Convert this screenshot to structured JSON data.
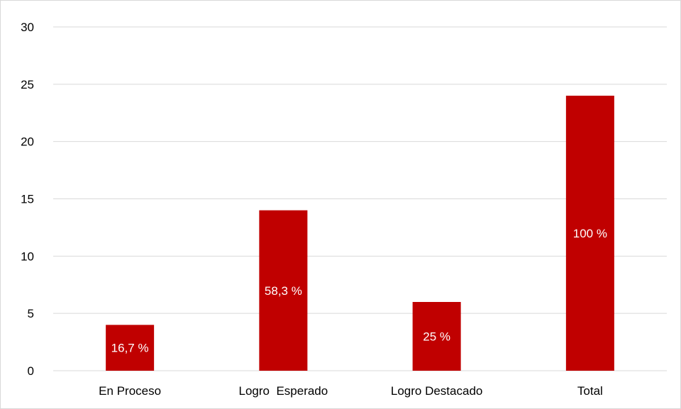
{
  "chart_data": {
    "type": "bar",
    "categories": [
      "En Proceso",
      "Logro  Esperado",
      "Logro Destacado",
      "Total"
    ],
    "values": [
      4,
      14,
      6,
      24
    ],
    "data_labels": [
      "16,7 %",
      "58,3 %",
      "25 %",
      "100 %"
    ],
    "ylim": [
      0,
      30
    ],
    "yticks": [
      0,
      5,
      10,
      15,
      20,
      25,
      30
    ],
    "grid": true,
    "legend": "none",
    "bar_color": "#c00000",
    "grid_color": "#d9d9d9"
  }
}
